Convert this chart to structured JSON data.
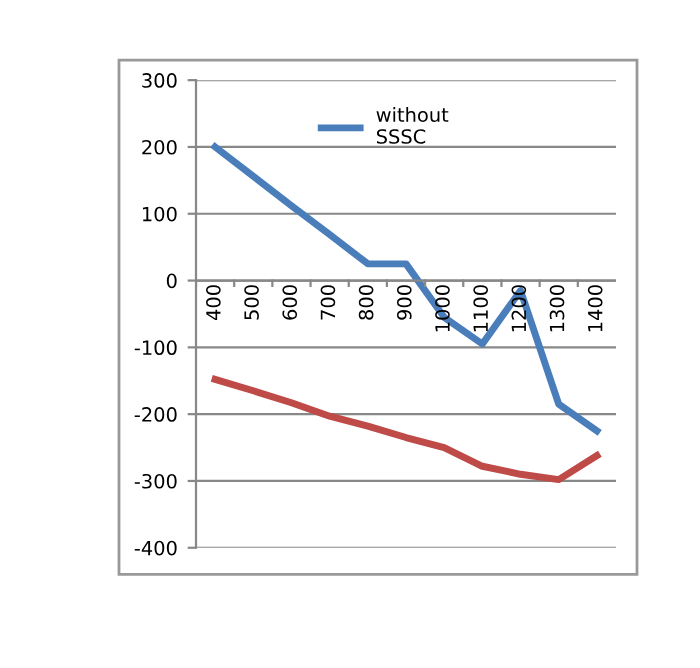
{
  "chart_data": {
    "type": "line",
    "categories": [
      "400",
      "500",
      "600",
      "700",
      "800",
      "900",
      "1000",
      "1100",
      "1200",
      "1300",
      "1400"
    ],
    "series": [
      {
        "name": "without SSSC",
        "color": "#4a7ebb",
        "values": [
          200,
          156,
          112,
          69,
          25,
          25,
          -55,
          -95,
          -15,
          -185,
          -225
        ]
      },
      {
        "color": "#be4b48",
        "values": [
          -148,
          -165,
          -183,
          -203,
          -218,
          -235,
          -250,
          -278,
          -290,
          -298,
          -262
        ]
      }
    ],
    "ylim": [
      -400,
      300
    ],
    "yticks": [
      -400,
      -300,
      -200,
      -100,
      0,
      100,
      200,
      300
    ],
    "grid": "y",
    "legend": "top",
    "marker": "none",
    "line_style": "solid"
  }
}
